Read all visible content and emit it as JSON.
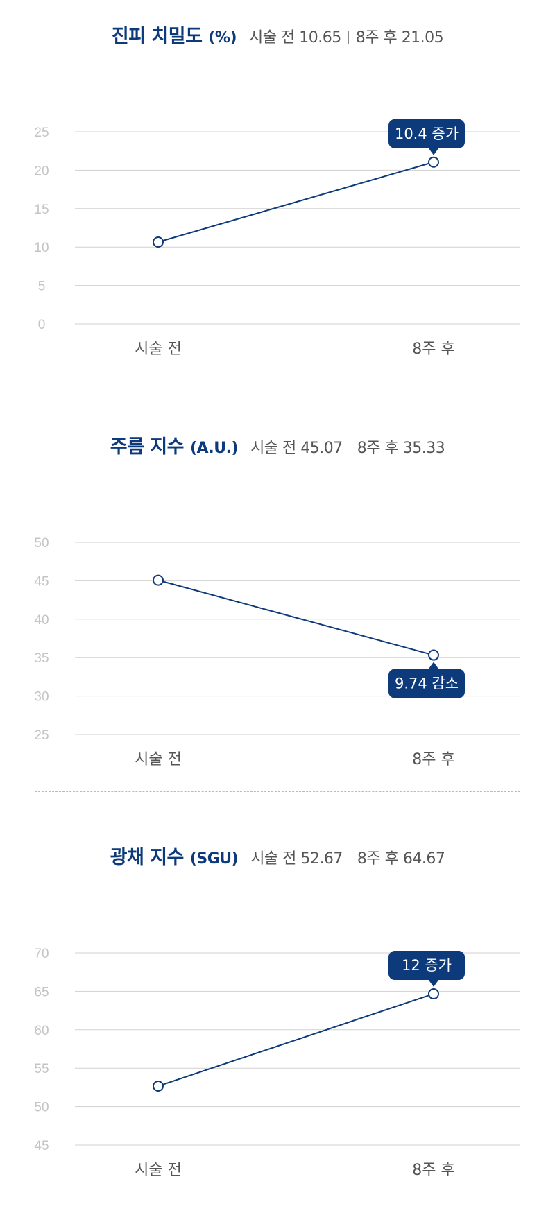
{
  "charts": [
    {
      "title": "진피 치밀도",
      "unit": "(%)",
      "before_label": "시술 전",
      "before_value": "10.65",
      "after_label": "8주 후",
      "after_value": "21.05",
      "change_label": "10.4 증가"
    },
    {
      "title": "주름 지수",
      "unit": "(A.U.)",
      "before_label": "시술 전",
      "before_value": "45.07",
      "after_label": "8주 후",
      "after_value": "35.33",
      "change_label": "9.74 감소"
    },
    {
      "title": "광채 지수",
      "unit": "(SGU)",
      "before_label": "시술 전",
      "before_value": "52.67",
      "after_label": "8주 후",
      "after_value": "64.67",
      "change_label": "12 증가"
    }
  ],
  "colors": {
    "line": "#0d3a7a",
    "badge": "#0d3a7a",
    "grid": "#d0d0d0",
    "tick": "#c4c4c4",
    "title": "#0d3a7a",
    "summary": "#555555"
  },
  "chart_data": [
    {
      "type": "line",
      "title": "진피 치밀도 (%)",
      "categories": [
        "시술 전",
        "8주 후"
      ],
      "values": [
        10.65,
        21.05
      ],
      "yticks": [
        0,
        5,
        10,
        15,
        20,
        25
      ],
      "ylim": [
        0,
        25
      ],
      "annotation": "10.4 증가",
      "annotation_placement": "above",
      "grid": true
    },
    {
      "type": "line",
      "title": "주름 지수 (A.U.)",
      "categories": [
        "시술 전",
        "8주 후"
      ],
      "values": [
        45.07,
        35.33
      ],
      "yticks": [
        25,
        30,
        35,
        40,
        45,
        50
      ],
      "ylim": [
        25,
        50
      ],
      "annotation": "9.74 감소",
      "annotation_placement": "below",
      "grid": true
    },
    {
      "type": "line",
      "title": "광채 지수 (SGU)",
      "categories": [
        "시술 전",
        "8주 후"
      ],
      "values": [
        52.67,
        64.67
      ],
      "yticks": [
        45,
        50,
        55,
        60,
        65,
        70
      ],
      "ylim": [
        45,
        70
      ],
      "annotation": "12 증가",
      "annotation_placement": "above",
      "grid": true
    }
  ]
}
